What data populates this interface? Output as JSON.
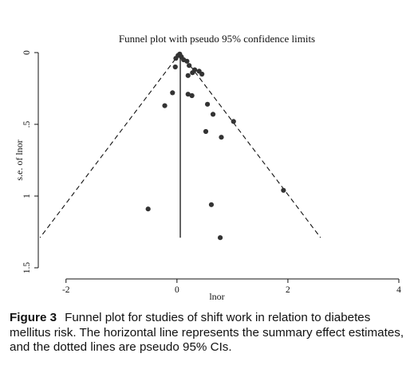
{
  "chart_data": {
    "type": "scatter",
    "title": "Funnel plot with pseudo 95% confidence limits",
    "xlabel": "lnor",
    "ylabel": "s.e. of lnor",
    "xlim": [
      -2.5,
      4.0
    ],
    "ylim": [
      0,
      1.5
    ],
    "y_reversed": true,
    "x_ticks": [
      -2,
      0,
      2,
      4
    ],
    "y_ticks": [
      0,
      0.5,
      1,
      1.5
    ],
    "x_tick_labels": [
      "-2",
      "0",
      "2",
      "4"
    ],
    "y_tick_labels": [
      "0",
      ".5",
      "1",
      "1.5"
    ],
    "summary_effect": 0.06,
    "summary_line_se_max": 1.29,
    "ci_multiplier": 1.96,
    "ci_se_max": 1.29,
    "grid": false,
    "points": [
      {
        "x": 0.02,
        "y": 0.02
      },
      {
        "x": 0.05,
        "y": 0.01
      },
      {
        "x": 0.08,
        "y": 0.03
      },
      {
        "x": -0.02,
        "y": 0.04
      },
      {
        "x": 0.12,
        "y": 0.05
      },
      {
        "x": 0.18,
        "y": 0.06
      },
      {
        "x": 0.22,
        "y": 0.09
      },
      {
        "x": -0.03,
        "y": 0.1
      },
      {
        "x": 0.32,
        "y": 0.12
      },
      {
        "x": 0.4,
        "y": 0.13
      },
      {
        "x": 0.28,
        "y": 0.14
      },
      {
        "x": 0.45,
        "y": 0.15
      },
      {
        "x": 0.2,
        "y": 0.16
      },
      {
        "x": -0.08,
        "y": 0.28
      },
      {
        "x": 0.2,
        "y": 0.29
      },
      {
        "x": 0.27,
        "y": 0.3
      },
      {
        "x": 0.55,
        "y": 0.36
      },
      {
        "x": -0.22,
        "y": 0.37
      },
      {
        "x": 0.65,
        "y": 0.43
      },
      {
        "x": 1.02,
        "y": 0.48
      },
      {
        "x": 0.52,
        "y": 0.55
      },
      {
        "x": 0.8,
        "y": 0.59
      },
      {
        "x": 1.92,
        "y": 0.96
      },
      {
        "x": 0.62,
        "y": 1.06
      },
      {
        "x": -0.52,
        "y": 1.09
      },
      {
        "x": 0.78,
        "y": 1.29
      }
    ]
  },
  "caption": {
    "label": "Figure 3",
    "text": "Funnel plot for studies of shift work in relation to diabetes mellitus risk. The horizontal line represents the summary effect estimates, and the dotted lines are pseudo 95% CIs."
  }
}
